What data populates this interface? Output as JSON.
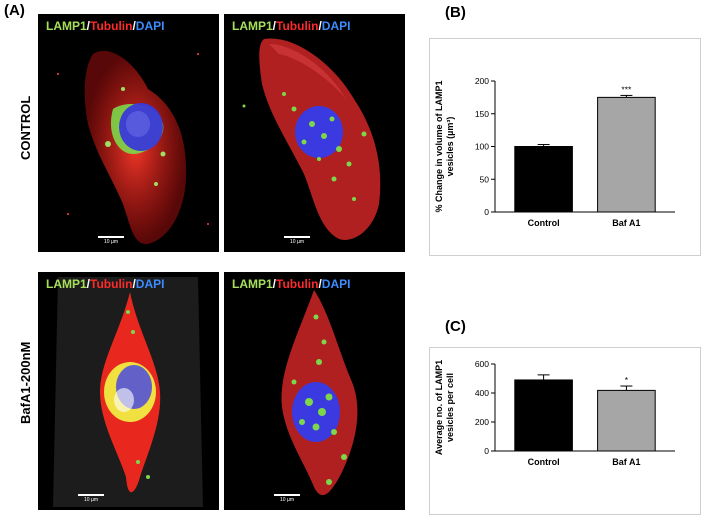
{
  "panels": {
    "a": "(A)",
    "b": "(B)",
    "c": "(C)"
  },
  "rows": {
    "control": "CONTROL",
    "bafa1": "BafA1-200nM"
  },
  "stain": {
    "lamp1": "LAMP1",
    "sep": "/",
    "tubulin": "Tubulin",
    "dapi": "DAPI"
  },
  "scale_bars": {
    "tl": "10 µm",
    "tr": "10 µm",
    "bl": "10 µm",
    "br": "10 µm"
  },
  "colors": {
    "lamp1": "#a6e05a",
    "tubulin": "#ff2a2a",
    "dapi": "#3c8cff",
    "control_bar": "#000000",
    "bafa1_bar": "#a6a6a6"
  },
  "chart_data": [
    {
      "type": "bar",
      "panel": "(B)",
      "categories": [
        "Control",
        "Baf A1"
      ],
      "values": [
        100,
        175
      ],
      "errors": [
        3,
        3
      ],
      "significance": [
        "",
        "***"
      ],
      "ylabel_lines": [
        "% Change in volume of LAMP1",
        "vesicles (µm³)"
      ],
      "ylim": [
        0,
        200
      ],
      "yticks": [
        0,
        50,
        100,
        150,
        200
      ]
    },
    {
      "type": "bar",
      "panel": "(C)",
      "categories": [
        "Control",
        "Baf A1"
      ],
      "values": [
        490,
        418
      ],
      "errors": [
        35,
        30
      ],
      "significance": [
        "",
        "*"
      ],
      "ylabel_lines": [
        "Average no. of LAMP1",
        "vesicles per cell"
      ],
      "ylim": [
        0,
        600
      ],
      "yticks": [
        0,
        200,
        400,
        600
      ]
    }
  ]
}
